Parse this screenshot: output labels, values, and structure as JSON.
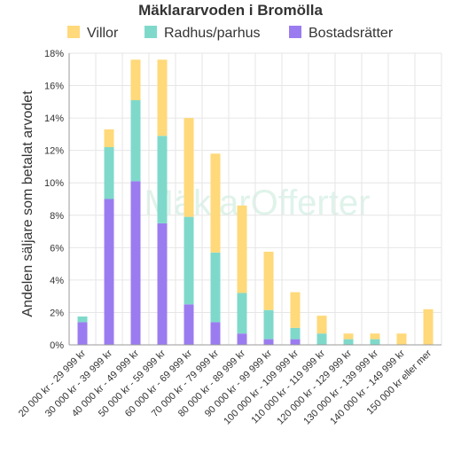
{
  "chart_data": {
    "type": "bar",
    "stacked": true,
    "title": "Mäklararvoden i Bromölla",
    "ylabel": "Andelen säljare som betalat arvodet",
    "xlabel": "",
    "ylim": [
      0,
      18
    ],
    "yticks": [
      0,
      2,
      4,
      6,
      8,
      10,
      12,
      14,
      16,
      18
    ],
    "ytick_suffix": "%",
    "grid": true,
    "legend_position": "top",
    "watermark": "MäklarOfferter",
    "categories": [
      "20 000 kr - 29 999 kr",
      "30 000 kr - 39 999 kr",
      "40 000 kr - 49 999 kr",
      "50 000 kr - 59 999 kr",
      "60 000 kr - 69 999 kr",
      "70 000 kr - 79 999 kr",
      "80 000 kr - 89 999 kr",
      "90 000 kr - 99 999 kr",
      "100 000 kr - 109 999 kr",
      "110 000 kr - 119 999 kr",
      "120 000 kr - 129 999 kr",
      "130 000 kr - 139 999 kr",
      "140 000 kr - 149 999 kr",
      "150 000 kr eller mer"
    ],
    "series": [
      {
        "name": "Bostadsrätter",
        "color": "#9b7cf0",
        "values": [
          1.4,
          9.0,
          10.1,
          7.5,
          2.5,
          1.4,
          0.7,
          0.35,
          0.35,
          0,
          0,
          0,
          0,
          0
        ]
      },
      {
        "name": "Radhus/parhus",
        "color": "#7fd9cb",
        "values": [
          0.35,
          3.2,
          5.0,
          5.4,
          5.4,
          4.3,
          2.5,
          1.8,
          0.7,
          0.7,
          0.35,
          0.35,
          0,
          0
        ]
      },
      {
        "name": "Villor",
        "color": "#ffd97a",
        "values": [
          0,
          1.1,
          2.5,
          4.7,
          6.1,
          6.1,
          5.4,
          3.6,
          2.2,
          1.1,
          0.35,
          0.35,
          0.7,
          2.2
        ]
      }
    ],
    "legend_order": [
      "Villor",
      "Radhus/parhus",
      "Bostadsrätter"
    ]
  }
}
